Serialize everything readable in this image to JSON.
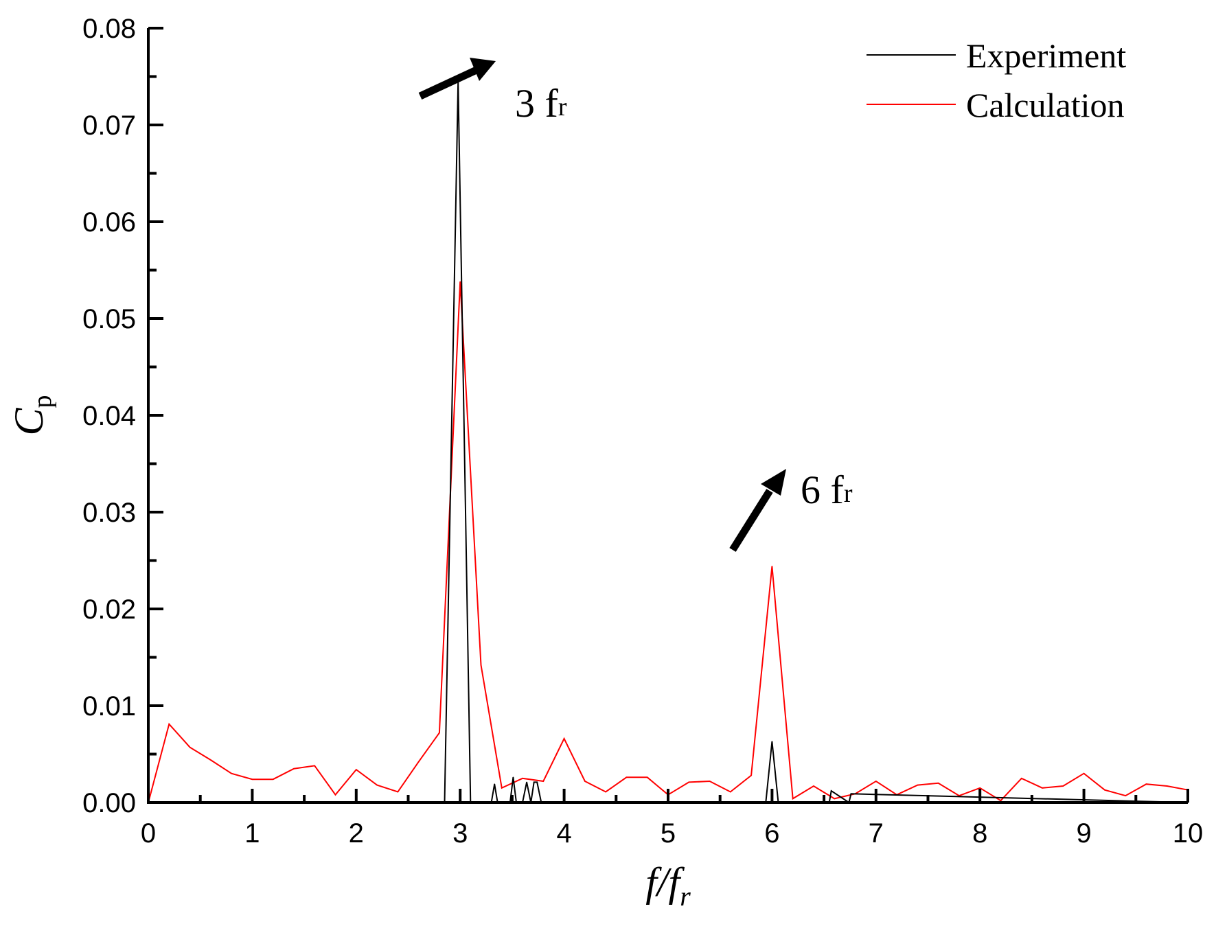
{
  "chart_data": {
    "type": "line",
    "xlabel": {
      "main": "f/f",
      "sub": "r"
    },
    "ylabel": {
      "main": "C",
      "sub": "p"
    },
    "xlim": [
      0,
      10
    ],
    "ylim": [
      0,
      0.08
    ],
    "x_ticks": [
      0,
      1,
      2,
      3,
      4,
      5,
      6,
      7,
      8,
      9,
      10
    ],
    "x_tick_labels": [
      "0",
      "1",
      "2",
      "3",
      "4",
      "5",
      "6",
      "7",
      "8",
      "9",
      "10"
    ],
    "y_ticks": [
      0,
      0.01,
      0.02,
      0.03,
      0.04,
      0.05,
      0.06,
      0.07,
      0.08
    ],
    "y_tick_labels": [
      "0.00",
      "0.01",
      "0.02",
      "0.03",
      "0.04",
      "0.05",
      "0.06",
      "0.07",
      "0.08"
    ],
    "grid": false,
    "legend_position": "top-right",
    "series": [
      {
        "name": "Experiment",
        "color": "#000000",
        "x": [
          0,
          2.85,
          2.98,
          3.1,
          3.3,
          3.33,
          3.36,
          3.48,
          3.51,
          3.54,
          3.6,
          3.64,
          3.68,
          3.71,
          3.74,
          3.78,
          5.94,
          6.0,
          6.06,
          6.55,
          6.57,
          6.74,
          6.76,
          10
        ],
        "y": [
          0,
          0,
          0.0745,
          0,
          0,
          0.0019,
          0,
          0,
          0.0026,
          0,
          0,
          0.0021,
          0,
          0.0021,
          0.0021,
          0,
          0,
          0.0063,
          0,
          0,
          0.0012,
          0,
          0.0009,
          0
        ]
      },
      {
        "name": "Calculation",
        "color": "#ff0000",
        "x": [
          0,
          0.2,
          0.4,
          0.6,
          0.8,
          1.0,
          1.2,
          1.4,
          1.6,
          1.8,
          2.0,
          2.2,
          2.4,
          2.6,
          2.8,
          3.0,
          3.2,
          3.4,
          3.6,
          3.8,
          4.0,
          4.2,
          4.4,
          4.6,
          4.8,
          5.0,
          5.2,
          5.4,
          5.6,
          5.8,
          6.0,
          6.2,
          6.4,
          6.6,
          6.8,
          7.0,
          7.2,
          7.4,
          7.6,
          7.8,
          8.0,
          8.2,
          8.4,
          8.6,
          8.8,
          9.0,
          9.2,
          9.4,
          9.6,
          9.8,
          10.0
        ],
        "y": [
          0,
          0.0081,
          0.0057,
          0.0044,
          0.003,
          0.0024,
          0.0024,
          0.0035,
          0.0038,
          0.0008,
          0.0034,
          0.0018,
          0.0011,
          0.0042,
          0.0072,
          0.0538,
          0.0142,
          0.0015,
          0.0025,
          0.0022,
          0.0066,
          0.0022,
          0.0011,
          0.0026,
          0.0026,
          0.0008,
          0.0021,
          0.0022,
          0.0011,
          0.0028,
          0.0244,
          0.0004,
          0.0017,
          0.0004,
          0.0009,
          0.0022,
          0.0008,
          0.0018,
          0.002,
          0.0007,
          0.0015,
          0.0002,
          0.0025,
          0.0015,
          0.0017,
          0.003,
          0.0013,
          0.0007,
          0.0019,
          0.0017,
          0.0013
        ]
      }
    ],
    "annotations": [
      {
        "label_main": "3 f",
        "label_sub": "r",
        "x": 3.0,
        "y": 0.0765
      },
      {
        "label_main": "6 f",
        "label_sub": "r",
        "x": 6.1,
        "y": 0.0345
      }
    ]
  }
}
